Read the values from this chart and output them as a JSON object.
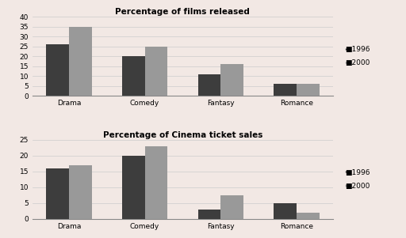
{
  "chart1": {
    "title": "Percentage of films released",
    "categories": [
      "Drama",
      "Comedy",
      "Fantasy",
      "Romance"
    ],
    "values_1996": [
      26,
      20,
      11,
      6
    ],
    "values_2000": [
      35,
      25,
      16,
      6
    ],
    "ylim": [
      0,
      40
    ],
    "yticks": [
      0,
      5,
      10,
      15,
      20,
      25,
      30,
      35,
      40
    ]
  },
  "chart2": {
    "title": "Percentage of Cinema ticket sales",
    "categories": [
      "Drama",
      "Comedy",
      "Fantasy",
      "Romance"
    ],
    "values_1996": [
      16,
      20,
      3,
      5
    ],
    "values_2000": [
      17,
      23,
      7.5,
      2
    ],
    "ylim": [
      0,
      25
    ],
    "yticks": [
      0,
      5,
      10,
      15,
      20,
      25
    ]
  },
  "color_1996": "#3d3d3d",
  "color_2000": "#999999",
  "bar_width": 0.3,
  "legend_labels": [
    "1996",
    "2000"
  ],
  "background_color": "#f2e8e4",
  "plot_bg_color": "#ffffff",
  "grid_color": "#cccccc"
}
